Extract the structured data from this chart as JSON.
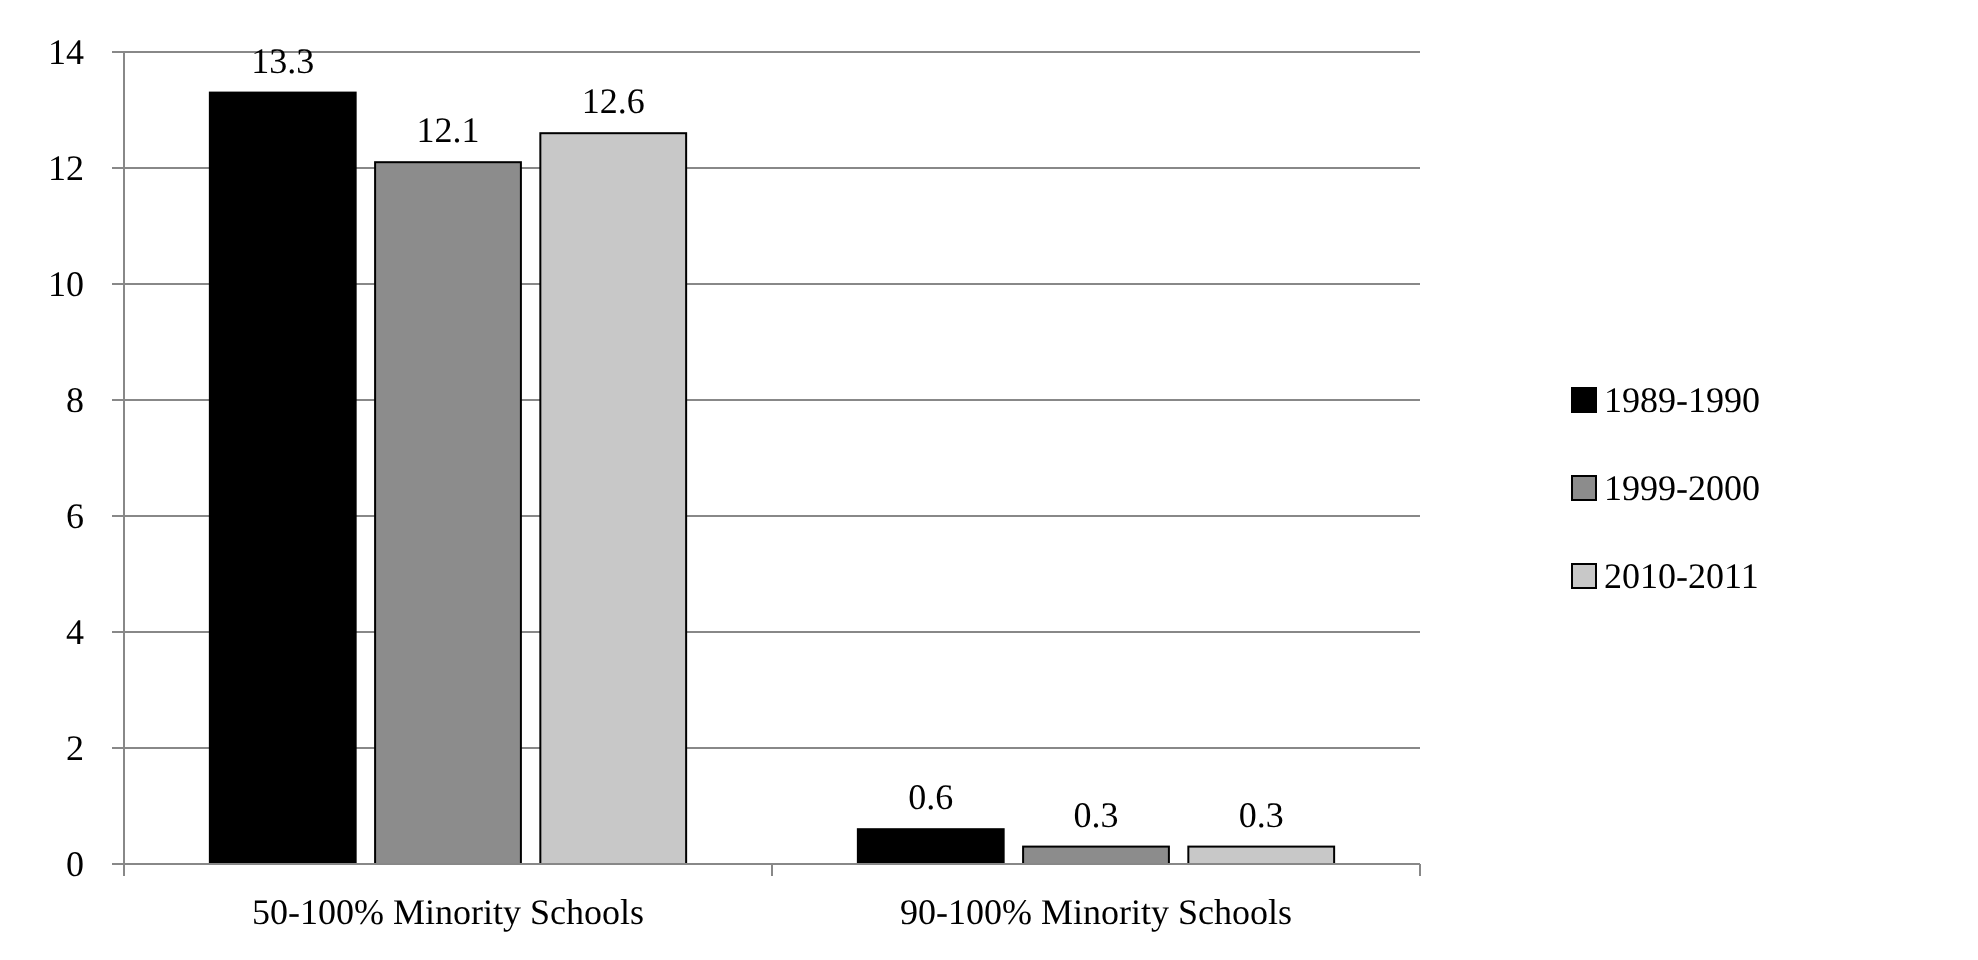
{
  "chart_data": {
    "type": "bar",
    "categories": [
      "50-100% Minority Schools",
      "90-100% Minority Schools"
    ],
    "series": [
      {
        "name": "1989-1990",
        "color": "#000000",
        "values": [
          13.3,
          0.6
        ]
      },
      {
        "name": "1999-2000",
        "color": "#8c8c8c",
        "values": [
          12.1,
          0.3
        ]
      },
      {
        "name": "2010-2011",
        "color": "#c8c8c8",
        "values": [
          12.6,
          0.3
        ]
      }
    ],
    "ylim": [
      0,
      14
    ],
    "yticks": [
      0,
      2,
      4,
      6,
      8,
      10,
      12,
      14
    ],
    "grid": "y",
    "legend": "right",
    "data_labels": true
  }
}
